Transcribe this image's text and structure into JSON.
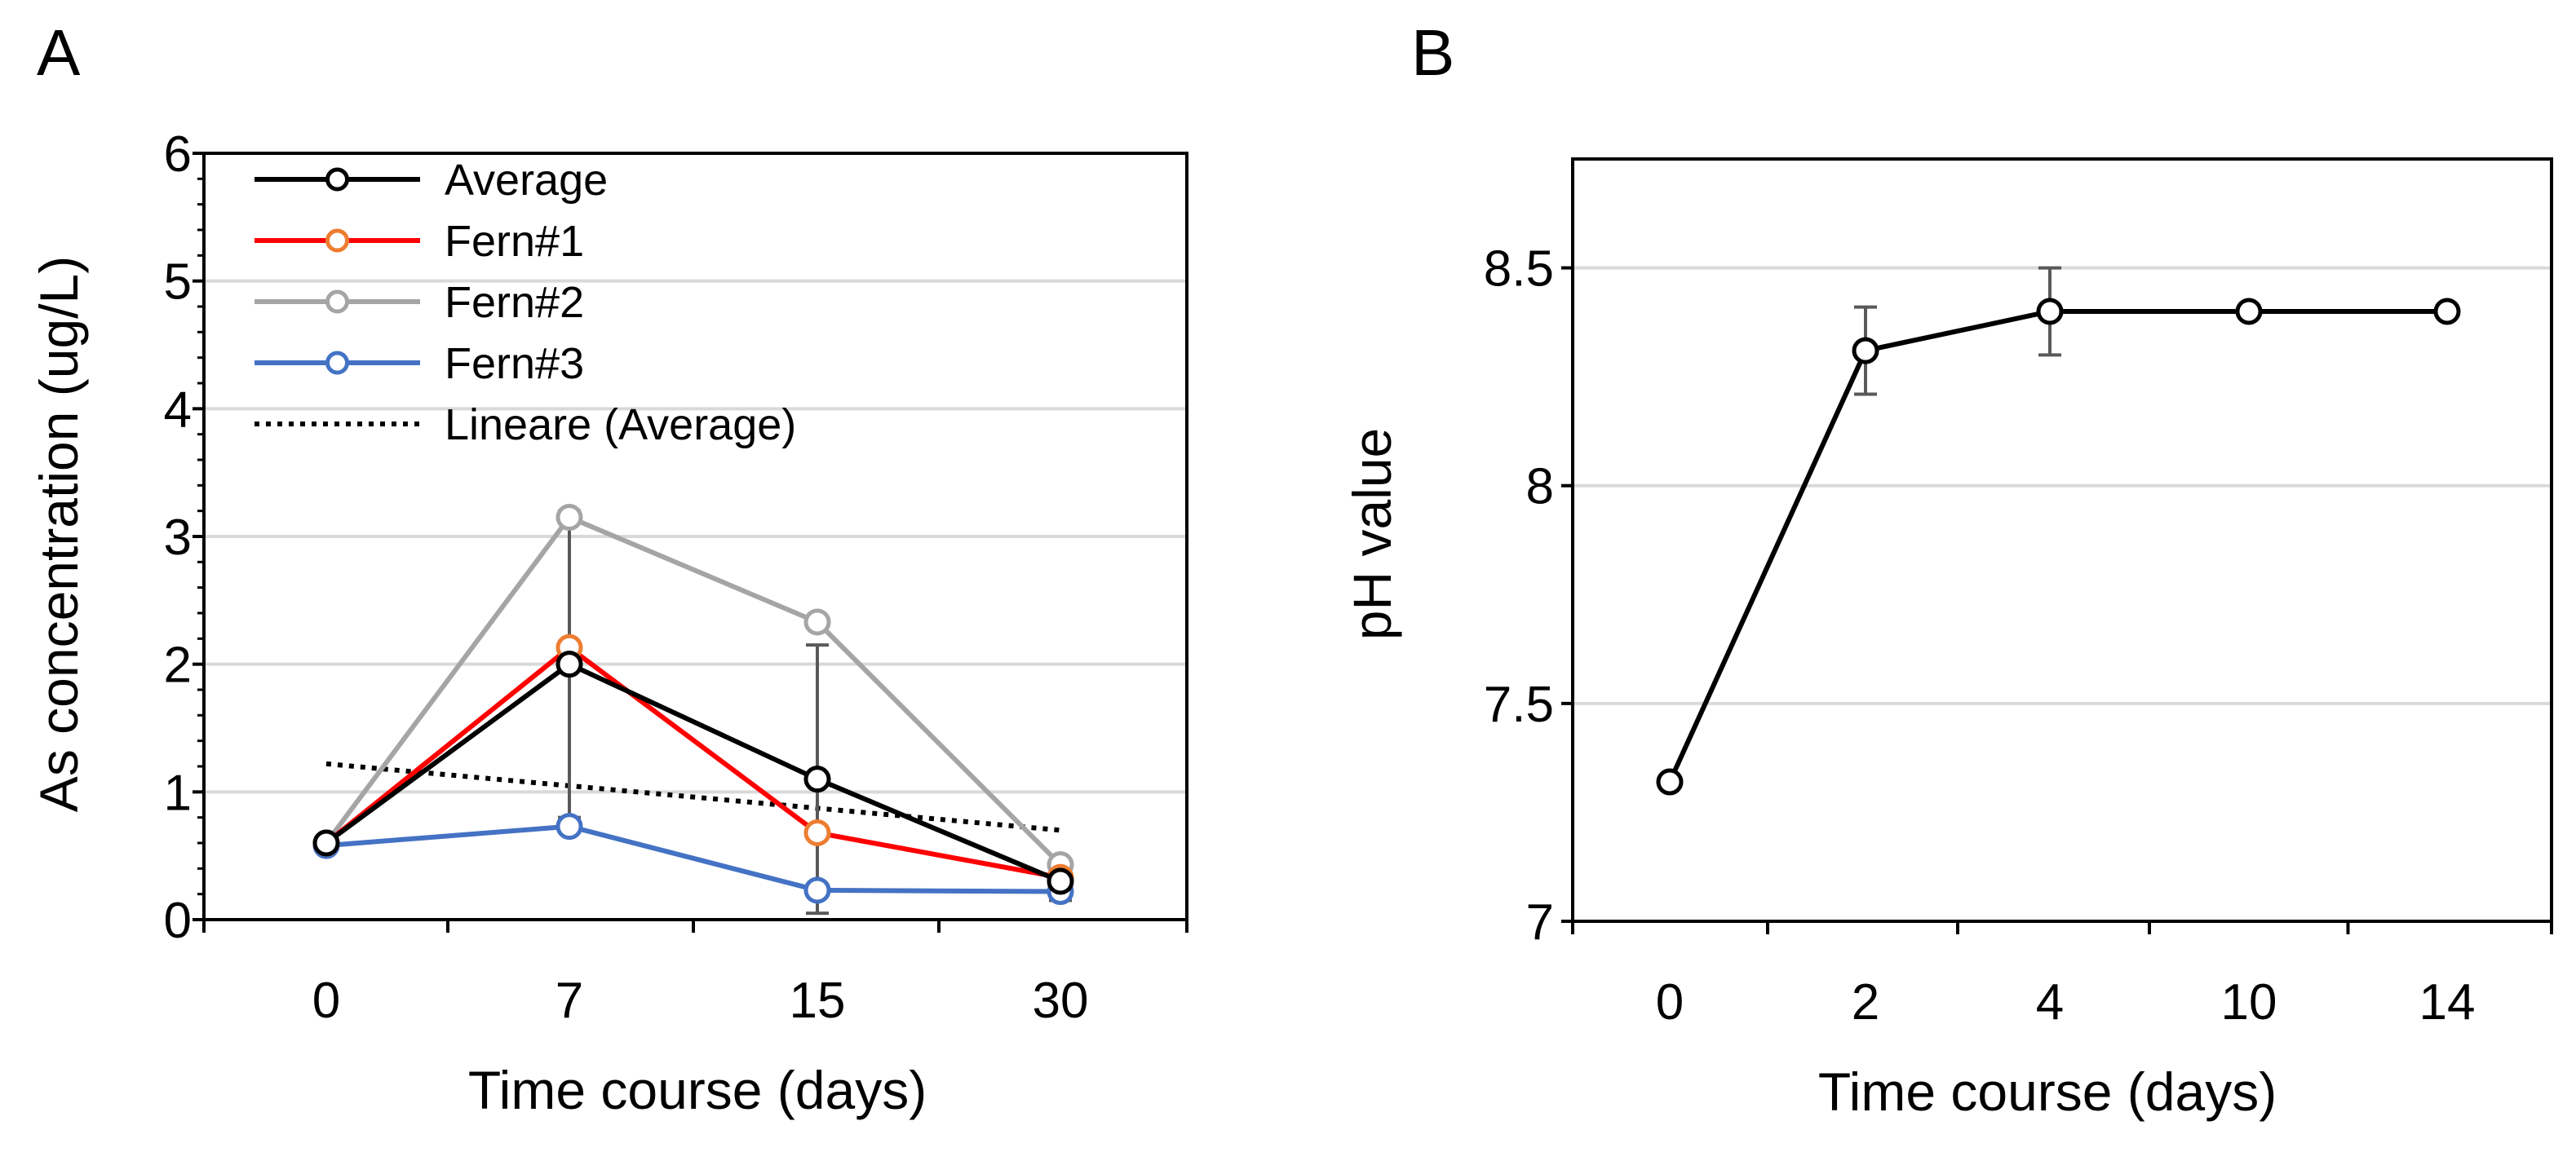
{
  "chart_data": [
    {
      "panel": "A",
      "type": "line",
      "title": "",
      "xlabel": "Time course (days)",
      "ylabel": "As concentration (ug/L)",
      "categories": [
        "0",
        "7",
        "15",
        "30"
      ],
      "ylim": [
        0,
        6
      ],
      "yticks": [
        0,
        1,
        2,
        3,
        4,
        5,
        6
      ],
      "grid": true,
      "legend_position": "top-left",
      "series": [
        {
          "name": "Average",
          "color": "#000000",
          "marker_color": "#000000",
          "values": [
            0.6,
            2.0,
            1.1,
            0.3
          ],
          "error": [
            0,
            1.2,
            1.05,
            0.15
          ]
        },
        {
          "name": "Fern#1",
          "color": "#ff0000",
          "marker_color": "#ed7d31",
          "values": [
            0.6,
            2.13,
            0.68,
            0.33
          ]
        },
        {
          "name": "Fern#2",
          "color": "#a5a5a5",
          "marker_color": "#a5a5a5",
          "values": [
            0.6,
            3.15,
            2.33,
            0.43
          ]
        },
        {
          "name": "Fern#3",
          "color": "#4472c4",
          "marker_color": "#4472c4",
          "values": [
            0.58,
            0.73,
            0.23,
            0.22
          ]
        }
      ],
      "trendline": {
        "name": "Lineare (Average)",
        "start": 1.22,
        "end": 0.7,
        "style": "dotted"
      }
    },
    {
      "panel": "B",
      "type": "line",
      "title": "",
      "xlabel": "Time course (days)",
      "ylabel": "pH value",
      "categories": [
        "0",
        "2",
        "4",
        "10",
        "14"
      ],
      "ylim": [
        7,
        8.75
      ],
      "yticks": [
        7,
        7.5,
        8,
        8.5
      ],
      "ytick_labels": [
        "7",
        "7.5",
        "8",
        "8.5"
      ],
      "grid": true,
      "series": [
        {
          "name": "",
          "color": "#000000",
          "values": [
            7.32,
            8.31,
            8.4,
            8.4,
            8.4
          ],
          "error": [
            0,
            0.1,
            0.1,
            0,
            0
          ]
        }
      ]
    }
  ]
}
